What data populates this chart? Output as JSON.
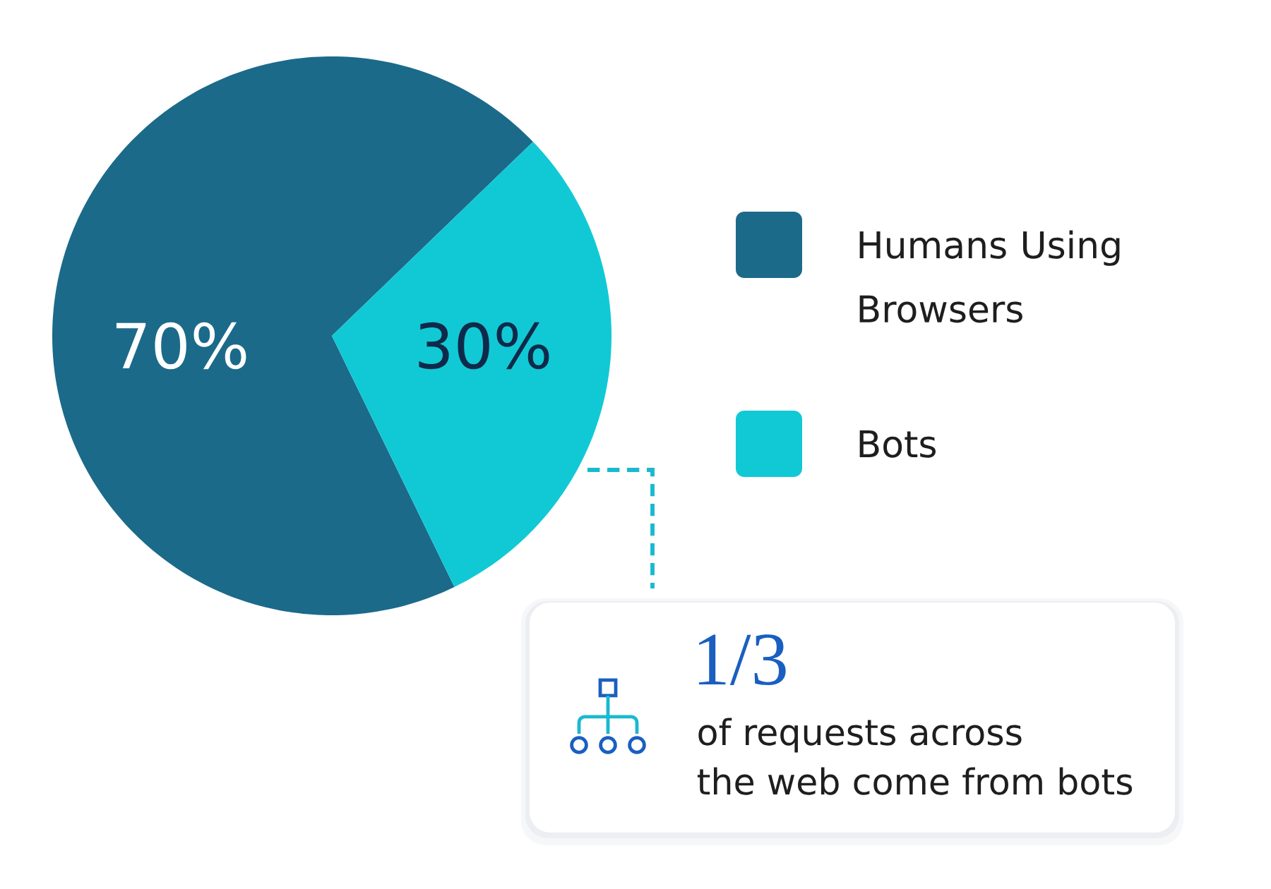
{
  "chart_data": {
    "type": "pie",
    "categories": [
      "Humans Using Browsers",
      "Bots"
    ],
    "values": [
      70,
      30
    ],
    "colors": [
      "#1b6a8a",
      "#11c9d5"
    ],
    "value_labels": [
      "70%",
      "30%"
    ],
    "legend": "right",
    "annotations": [
      "1/3",
      "of requests across",
      "the web come from bots"
    ]
  }
}
